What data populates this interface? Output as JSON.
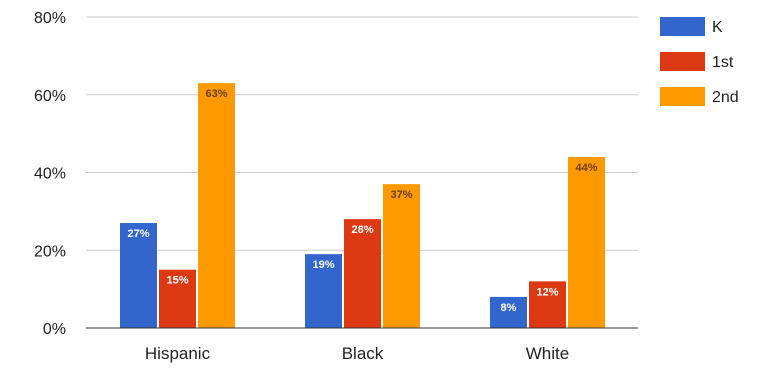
{
  "chart_data": {
    "type": "bar",
    "categories": [
      "Hispanic",
      "Black",
      "White"
    ],
    "series": [
      {
        "name": "K",
        "values": [
          27,
          19,
          8
        ],
        "labels": [
          "27%",
          "19%",
          "8%"
        ]
      },
      {
        "name": "1st",
        "values": [
          15,
          28,
          12
        ],
        "labels": [
          "15%",
          "28%",
          "12%"
        ]
      },
      {
        "name": "2nd",
        "values": [
          63,
          37,
          44
        ],
        "labels": [
          "63%",
          "37%",
          "44%"
        ]
      }
    ],
    "colors": [
      "#3366cc",
      "#dc3912",
      "#ff9900"
    ],
    "label_colors": [
      "#ffffff",
      "#ffffff",
      "#6b3f00"
    ],
    "yticks": [
      0,
      20,
      40,
      60,
      80
    ],
    "ytick_labels": [
      "0%",
      "20%",
      "40%",
      "60%",
      "80%"
    ],
    "ylim": [
      0,
      80
    ],
    "title": "",
    "xlabel": "",
    "ylabel": "",
    "grid": true,
    "legend": "right"
  }
}
